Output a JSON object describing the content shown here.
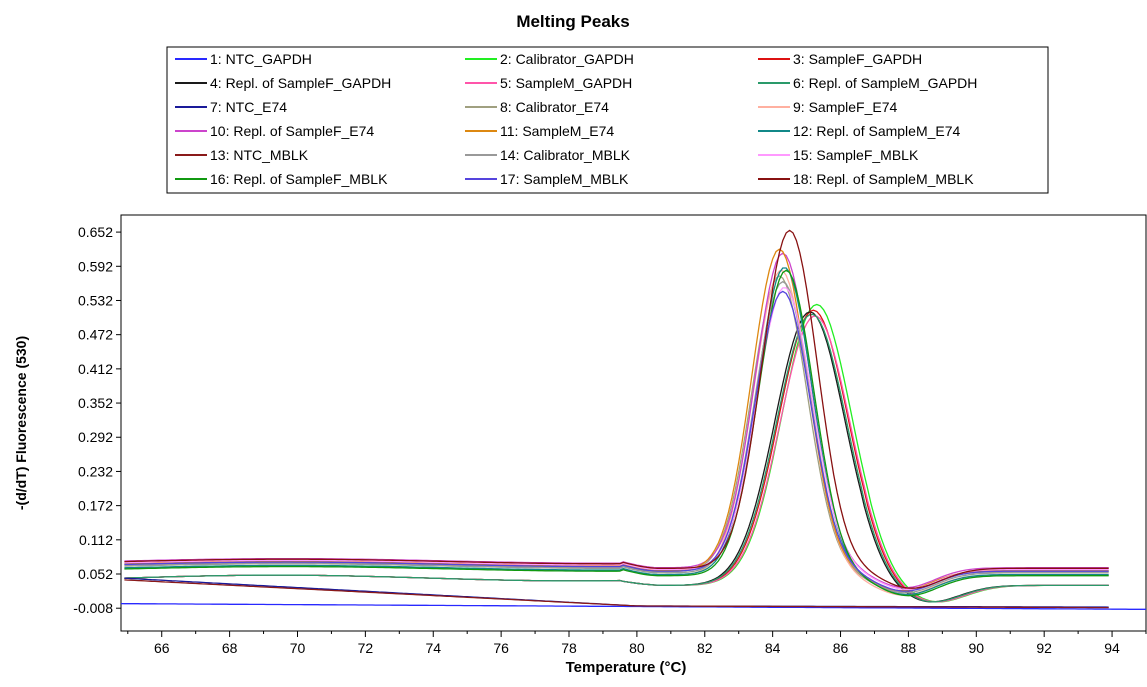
{
  "chart_data": {
    "type": "line",
    "title": "Melting Peaks",
    "xlabel": "Temperature (°C)",
    "ylabel": "-(d/dT) Fluorescence (530)",
    "xlim": [
      64.8,
      95.0
    ],
    "ylim": [
      -0.048,
      0.682
    ],
    "xticks": [
      66,
      68,
      70,
      72,
      74,
      76,
      78,
      80,
      82,
      84,
      86,
      88,
      90,
      92,
      94
    ],
    "yticks": [
      -0.008,
      0.052,
      0.112,
      0.172,
      0.232,
      0.292,
      0.352,
      0.412,
      0.472,
      0.532,
      0.592,
      0.652
    ],
    "grid": false,
    "legend_position": "top",
    "series": [
      {
        "name": "1: NTC_GAPDH",
        "color": "#2929ff",
        "kind": "flat",
        "base": 0.0,
        "end": -0.01
      },
      {
        "name": "2: Calibrator_GAPDH",
        "color": "#22ee22",
        "kind": "late",
        "peak_x": 85.3,
        "peak_y": 0.525
      },
      {
        "name": "3: SampleF_GAPDH",
        "color": "#dd1111",
        "kind": "late",
        "peak_x": 85.2,
        "peak_y": 0.515
      },
      {
        "name": "4: Repl. of SampleF_GAPDH",
        "color": "#1a1a1a",
        "kind": "late",
        "peak_x": 85.1,
        "peak_y": 0.512
      },
      {
        "name": "5: SampleM_GAPDH",
        "color": "#ff55aa",
        "kind": "late",
        "peak_x": 85.25,
        "peak_y": 0.505
      },
      {
        "name": "6: Repl. of SampleM_GAPDH",
        "color": "#2a9a6a",
        "kind": "late",
        "peak_x": 85.15,
        "peak_y": 0.508
      },
      {
        "name": "7: NTC_E74",
        "color": "#1a1a99",
        "kind": "decline",
        "start": 0.045,
        "end": -0.006
      },
      {
        "name": "8: Calibrator_E74",
        "color": "#a0a080",
        "kind": "peak",
        "peak_x": 84.2,
        "peak_y": 0.575,
        "plateau": 0.068
      },
      {
        "name": "9: SampleF_E74",
        "color": "#ffb0a0",
        "kind": "peak",
        "peak_x": 84.25,
        "peak_y": 0.585,
        "plateau": 0.062
      },
      {
        "name": "10: Repl. of SampleF_E74",
        "color": "#cc44cc",
        "kind": "peak",
        "peak_x": 84.3,
        "peak_y": 0.615,
        "plateau": 0.075
      },
      {
        "name": "11: SampleM_E74",
        "color": "#dd8811",
        "kind": "peak",
        "peak_x": 84.2,
        "peak_y": 0.622,
        "plateau": 0.07
      },
      {
        "name": "12: Repl. of SampleM_E74",
        "color": "#118888",
        "kind": "peak",
        "peak_x": 84.35,
        "peak_y": 0.59,
        "plateau": 0.063
      },
      {
        "name": "13: NTC_MBLK",
        "color": "#8a1a1a",
        "kind": "decline",
        "start": 0.042,
        "end": -0.007
      },
      {
        "name": "14: Calibrator_MBLK",
        "color": "#999999",
        "kind": "peak",
        "peak_x": 84.3,
        "peak_y": 0.565,
        "plateau": 0.066
      },
      {
        "name": "15: SampleF_MBLK",
        "color": "#ff99ff",
        "kind": "peak",
        "peak_x": 84.35,
        "peak_y": 0.555,
        "plateau": 0.072
      },
      {
        "name": "16: Repl. of SampleF_MBLK",
        "color": "#119911",
        "kind": "peak",
        "peak_x": 84.4,
        "peak_y": 0.585,
        "plateau": 0.061
      },
      {
        "name": "17: SampleM_MBLK",
        "color": "#5544dd",
        "kind": "peak",
        "peak_x": 84.3,
        "peak_y": 0.548,
        "plateau": 0.069
      },
      {
        "name": "18: Repl. of SampleM_MBLK",
        "color": "#881111",
        "kind": "peak",
        "peak_x": 84.5,
        "peak_y": 0.655,
        "plateau": 0.074
      }
    ]
  }
}
